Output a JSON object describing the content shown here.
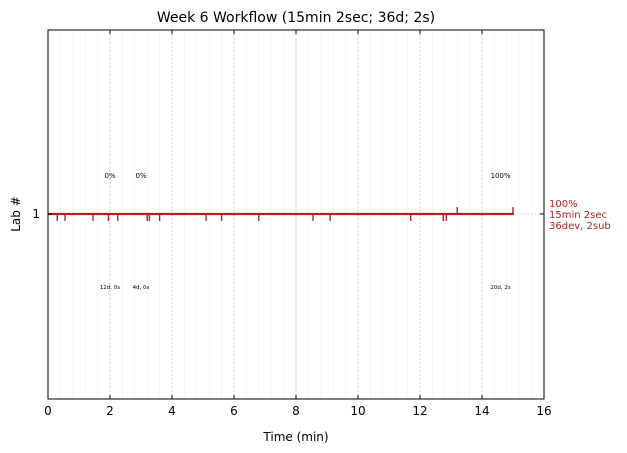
{
  "chart_data": {
    "type": "line",
    "title": "Week 6 Workflow (15min 2sec; 36d; 2s)",
    "xlabel": "Time (min)",
    "ylabel": "Lab #",
    "xlim": [
      0,
      16
    ],
    "x_ticks": [
      0,
      2,
      4,
      6,
      8,
      10,
      12,
      14,
      16
    ],
    "y_ticks": [
      {
        "value": 1,
        "label": "1"
      }
    ],
    "grid": "vertical dotted at major ticks, faint minor lines",
    "series": [
      {
        "color": "#b22222",
        "start": 0,
        "end": 15.03,
        "y": 1,
        "down_ticks": [
          0.3,
          0.55,
          1.45,
          1.95,
          2.25,
          3.2,
          3.27,
          3.6,
          5.1,
          5.6,
          6.8,
          8.55,
          9.1,
          11.7,
          12.75,
          12.85
        ],
        "up_ticks": [
          13.2,
          15.0
        ]
      }
    ],
    "annotations": [
      {
        "x": 2.0,
        "label": "0%",
        "sublabel": "12d, 0s"
      },
      {
        "x": 3.0,
        "label": "0%",
        "sublabel": "4d, 0s"
      },
      {
        "x": 14.6,
        "label": "100%",
        "sublabel": "20d, 2s"
      }
    ],
    "side_label": [
      "100%",
      "15min 2sec",
      "36dev, 2sub"
    ]
  }
}
